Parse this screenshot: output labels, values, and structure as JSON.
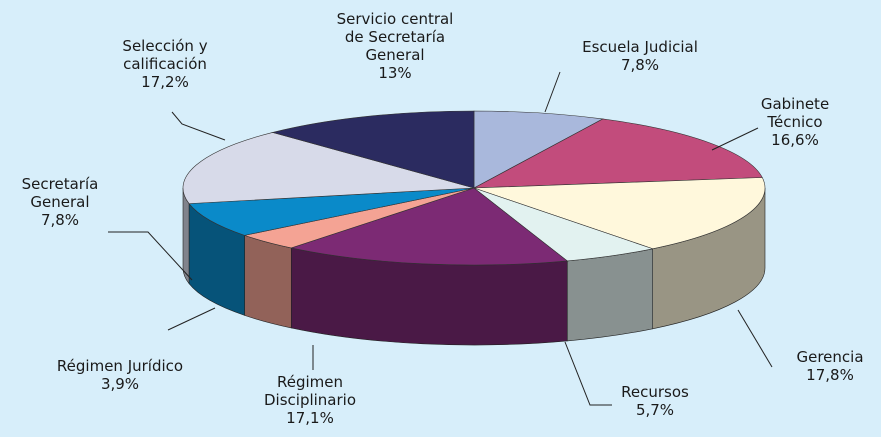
{
  "chart_data": {
    "type": "pie3d",
    "categories": [
      "Escuela Judicial",
      "Gabinete\nTécnico",
      "Gerencia",
      "Recursos",
      "Régimen\nDisciplinario",
      "Régimen Jurídico",
      "Secretaría\nGeneral",
      "Selección y\ncalificación",
      "Servicio central\nde Secretaría\nGeneral"
    ],
    "values": [
      7.8,
      16.6,
      17.8,
      5.7,
      17.1,
      3.9,
      7.8,
      17.2,
      13
    ],
    "value_labels": [
      "7,8%",
      "16,6%",
      "17,8%",
      "5,7%",
      "17,1%",
      "3,9%",
      "7,8%",
      "17,2%",
      "13%"
    ],
    "colors": [
      "#a9b8dc",
      "#c24c7c",
      "#fff8dc",
      "#e2f2f0",
      "#7c2a74",
      "#f4a394",
      "#0a8ac9",
      "#d7dae9",
      "#2b2b60"
    ]
  }
}
